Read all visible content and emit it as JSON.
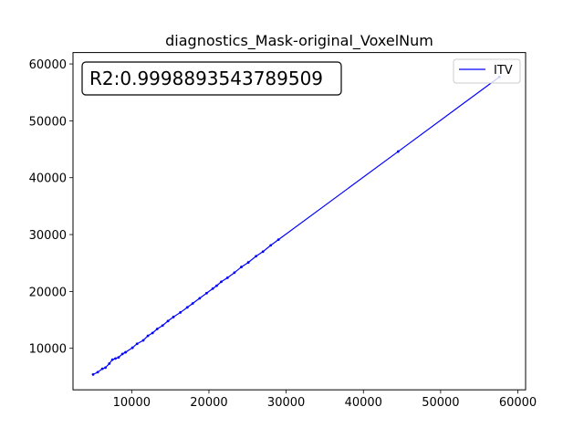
{
  "chart_data": {
    "type": "line",
    "title": "diagnostics_Mask-original_VoxelNum",
    "xlabel": "",
    "ylabel": "",
    "xlim": [
      2400,
      61000
    ],
    "ylim": [
      2700,
      62000
    ],
    "xticks": [
      10000,
      20000,
      30000,
      40000,
      50000,
      60000
    ],
    "yticks": [
      10000,
      20000,
      30000,
      40000,
      50000,
      60000
    ],
    "grid": false,
    "legend_position": "top-right",
    "annotation": "R2:0.9998893543789509",
    "series": [
      {
        "name": "ITV",
        "color": "#0000ff",
        "x": [
          5000,
          5600,
          6200,
          6600,
          7100,
          7500,
          7900,
          8300,
          8800,
          9200,
          10100,
          10700,
          11500,
          12100,
          12700,
          13300,
          14000,
          14700,
          15400,
          16300,
          17200,
          17900,
          18800,
          19700,
          20500,
          21000,
          21600,
          22400,
          23300,
          24200,
          25100,
          26100,
          27000,
          28000,
          29000,
          44500,
          57600
        ],
        "y": [
          5400,
          5800,
          6400,
          6600,
          7300,
          8000,
          8200,
          8400,
          9000,
          9300,
          10100,
          10800,
          11400,
          12200,
          12700,
          13400,
          14000,
          14800,
          15500,
          16300,
          17200,
          17900,
          18800,
          19700,
          20500,
          21000,
          21700,
          22400,
          23300,
          24300,
          25100,
          26200,
          27000,
          28100,
          29100,
          44600,
          57700
        ]
      }
    ]
  }
}
